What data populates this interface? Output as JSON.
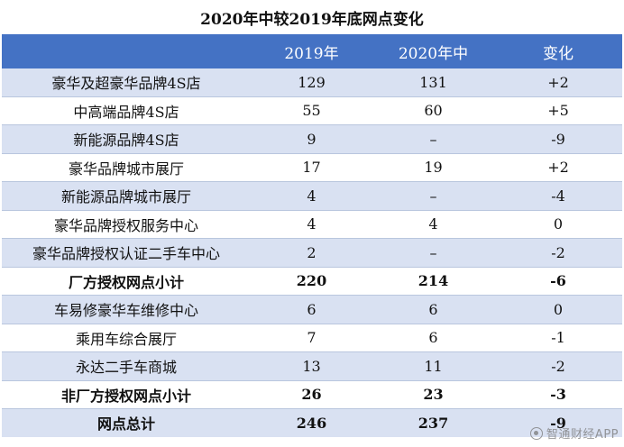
{
  "title": "2020年中较2019年底网点变化",
  "columns": [
    "",
    "2019年",
    "2020年中",
    "变化"
  ],
  "rows": [
    {
      "label": "豪华及超豪华品牌4S店",
      "y2019": "129",
      "y2020": "131",
      "change": "+2",
      "bold": false,
      "shade": true
    },
    {
      "label": "中高端品牌4S店",
      "y2019": "55",
      "y2020": "60",
      "change": "+5",
      "bold": false,
      "shade": false
    },
    {
      "label": "新能源品牌4S店",
      "y2019": "9",
      "y2020": "–",
      "change": "-9",
      "bold": false,
      "shade": true
    },
    {
      "label": "豪华品牌城市展厅",
      "y2019": "17",
      "y2020": "19",
      "change": "+2",
      "bold": false,
      "shade": false
    },
    {
      "label": "新能源品牌城市展厅",
      "y2019": "4",
      "y2020": "–",
      "change": "-4",
      "bold": false,
      "shade": true
    },
    {
      "label": "豪华品牌授权服务中心",
      "y2019": "4",
      "y2020": "4",
      "change": "0",
      "bold": false,
      "shade": false
    },
    {
      "label": "豪华品牌授权认证二手车中心",
      "y2019": "2",
      "y2020": "–",
      "change": "-2",
      "bold": false,
      "shade": true
    },
    {
      "label": "厂方授权网点小计",
      "y2019": "220",
      "y2020": "214",
      "change": "-6",
      "bold": true,
      "shade": false
    },
    {
      "label": "车易修豪华车维修中心",
      "y2019": "6",
      "y2020": "6",
      "change": "0",
      "bold": false,
      "shade": true
    },
    {
      "label": "乘用车综合展厅",
      "y2019": "7",
      "y2020": "6",
      "change": "-1",
      "bold": false,
      "shade": false
    },
    {
      "label": "永达二手车商城",
      "y2019": "13",
      "y2020": "11",
      "change": "-2",
      "bold": false,
      "shade": true
    },
    {
      "label": "非厂方授权网点小计",
      "y2019": "26",
      "y2020": "23",
      "change": "-3",
      "bold": true,
      "shade": false
    },
    {
      "label": "网点总计",
      "y2019": "246",
      "y2020": "237",
      "change": "-9",
      "bold": true,
      "shade": true
    }
  ],
  "watermark": "智通财经APP",
  "colors": {
    "header": "#4472c4",
    "shade": "#d9e1f2",
    "border": "#b9c6de"
  }
}
